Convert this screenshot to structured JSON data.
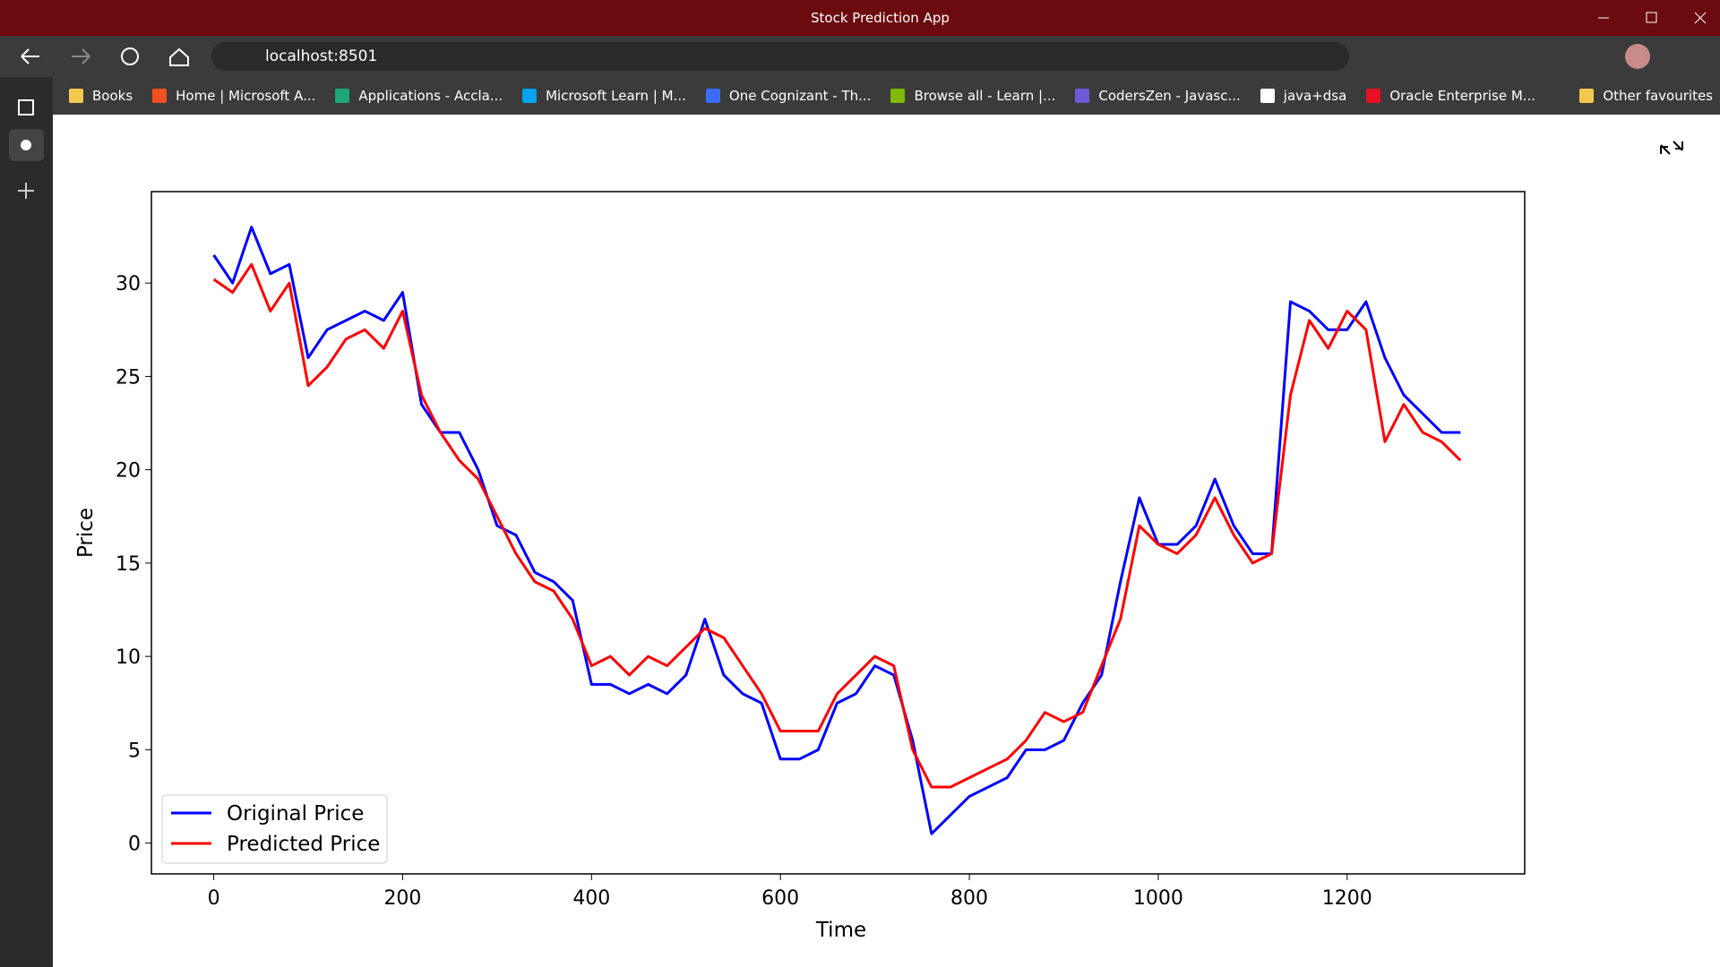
{
  "window": {
    "title": "Stock Prediction App"
  },
  "address_bar": {
    "url": "localhost:8501"
  },
  "bookmarks": [
    "Books",
    "Home | Microsoft A...",
    "Applications - Accla...",
    "Microsoft Learn | M...",
    "One Cognizant - Th...",
    "Browse all - Learn |...",
    "CodersZen - Javasc...",
    "java+dsa",
    "Oracle Enterprise M..."
  ],
  "other_bookmarks": "Other favourites",
  "chart_data": {
    "type": "line",
    "x_label": "Time",
    "y_label": "Price",
    "x": [
      0,
      20,
      40,
      60,
      80,
      100,
      120,
      140,
      160,
      180,
      200,
      220,
      240,
      260,
      280,
      300,
      320,
      340,
      360,
      380,
      400,
      420,
      440,
      460,
      480,
      500,
      520,
      540,
      560,
      580,
      600,
      620,
      640,
      660,
      680,
      700,
      720,
      740,
      760,
      780,
      800,
      820,
      840,
      860,
      880,
      900,
      920,
      940,
      960,
      980,
      1000,
      1020,
      1040,
      1060,
      1080,
      1100,
      1120,
      1140,
      1160,
      1180,
      1200,
      1220,
      1240,
      1260,
      1280,
      1300,
      1320
    ],
    "series": [
      {
        "name": "Original Price",
        "color": "#0000ff",
        "values": [
          31.5,
          30,
          33,
          30.5,
          31,
          26,
          27.5,
          28,
          28.5,
          28,
          29.5,
          23.5,
          22,
          22,
          20,
          17,
          16.5,
          14.5,
          14,
          13,
          8.5,
          8.5,
          8,
          8.5,
          8,
          9,
          12,
          9,
          8,
          7.5,
          4.5,
          4.5,
          5,
          7.5,
          8,
          9.5,
          9,
          5.5,
          0.5,
          1.5,
          2.5,
          3,
          3.5,
          5,
          5,
          5.5,
          7.5,
          9,
          14,
          18.5,
          16,
          16,
          17,
          19.5,
          17,
          15.5,
          15.5,
          29,
          28.5,
          27.5,
          27.5,
          29,
          26,
          24,
          23,
          22,
          22
        ]
      },
      {
        "name": "Predicted Price",
        "color": "#ff0000",
        "values": [
          30.2,
          29.5,
          31,
          28.5,
          30,
          24.5,
          25.5,
          27,
          27.5,
          26.5,
          28.5,
          24,
          22,
          20.5,
          19.5,
          17.5,
          15.5,
          14,
          13.5,
          12,
          9.5,
          10,
          9,
          10,
          9.5,
          10.5,
          11.5,
          11,
          9.5,
          8,
          6,
          6,
          6,
          8,
          9,
          10,
          9.5,
          5,
          3,
          3,
          3.5,
          4,
          4.5,
          5.5,
          7,
          6.5,
          7,
          9.5,
          12,
          17,
          16,
          15.5,
          16.5,
          18.5,
          16.5,
          15,
          15.5,
          24,
          28,
          26.5,
          28.5,
          27.5,
          21.5,
          23.5,
          22,
          21.5,
          20.5
        ]
      }
    ],
    "xlim": [
      -66,
      1388
    ],
    "ylim": [
      -1.65,
      34.9
    ],
    "xticks": [
      0,
      200,
      400,
      600,
      800,
      1000,
      1200
    ],
    "yticks": [
      0,
      5,
      10,
      15,
      20,
      25,
      30
    ],
    "legend": "lower left",
    "grid": false
  }
}
